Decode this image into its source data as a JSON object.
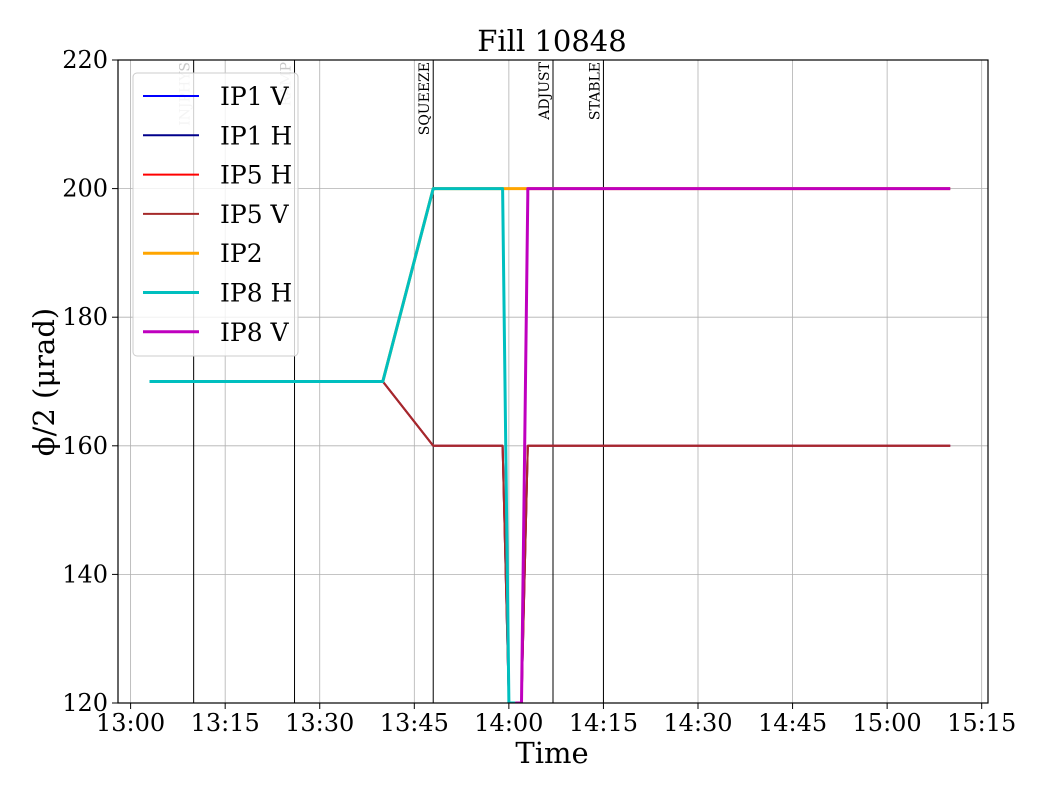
{
  "chart_data": {
    "type": "line",
    "title": "Fill 10848",
    "xlabel": "Time",
    "ylabel": "ϕ/2 (μrad)",
    "ylim": [
      120,
      220
    ],
    "xlim": [
      "13:00",
      "15:16"
    ],
    "grid": true,
    "legend_position": "top-left",
    "x_ticks": [
      "13:00",
      "13:15",
      "13:30",
      "13:45",
      "14:00",
      "14:15",
      "14:30",
      "14:45",
      "15:00",
      "15:15"
    ],
    "y_ticks": [
      "120",
      "140",
      "160",
      "180",
      "200",
      "220"
    ],
    "events": [
      {
        "label": "INJPHYS",
        "time": "13:10",
        "color": "#c8c8c8"
      },
      {
        "label": "RAMP",
        "time": "13:26",
        "color": "#c8c8c8"
      },
      {
        "label": "SQUEEZE",
        "time": "13:48",
        "color": "#000000"
      },
      {
        "label": "ADJUST",
        "time": "14:07",
        "color": "#000000"
      },
      {
        "label": "STABLE",
        "time": "14:15",
        "color": "#000000"
      }
    ],
    "series": [
      {
        "name": "IP1 V",
        "color": "#0000ff",
        "width": 2,
        "points": [
          [
            "13:03",
            170
          ],
          [
            "13:40",
            170
          ],
          [
            "13:48",
            160
          ],
          [
            "13:59",
            160
          ],
          [
            "14:00",
            120
          ],
          [
            "14:02",
            120
          ],
          [
            "14:03",
            160
          ],
          [
            "15:10",
            160
          ]
        ]
      },
      {
        "name": "IP1 H",
        "color": "#00008b",
        "width": 2,
        "points": [
          [
            "13:03",
            170
          ],
          [
            "13:40",
            170
          ],
          [
            "13:48",
            200
          ],
          [
            "13:59",
            200
          ],
          [
            "14:00",
            120
          ],
          [
            "14:02",
            120
          ],
          [
            "14:03",
            200
          ],
          [
            "15:10",
            200
          ]
        ]
      },
      {
        "name": "IP5 H",
        "color": "#ff0000",
        "width": 2,
        "points": [
          [
            "13:03",
            170
          ],
          [
            "13:40",
            170
          ],
          [
            "13:48",
            160
          ],
          [
            "13:59",
            160
          ],
          [
            "14:00",
            120
          ],
          [
            "14:02",
            120
          ],
          [
            "14:03",
            160
          ],
          [
            "15:10",
            160
          ]
        ]
      },
      {
        "name": "IP5 V",
        "color": "#a52a2a",
        "width": 2,
        "points": [
          [
            "13:03",
            170
          ],
          [
            "13:40",
            170
          ],
          [
            "13:48",
            160
          ],
          [
            "13:59",
            160
          ],
          [
            "14:00",
            120
          ],
          [
            "14:02",
            120
          ],
          [
            "14:03",
            160
          ],
          [
            "15:10",
            160
          ]
        ]
      },
      {
        "name": "IP2",
        "color": "#ffa500",
        "width": 3,
        "points": [
          [
            "13:03",
            170
          ],
          [
            "13:40",
            170
          ],
          [
            "13:48",
            200
          ],
          [
            "15:10",
            200
          ]
        ]
      },
      {
        "name": "IP8 H",
        "color": "#00bfbf",
        "width": 3,
        "points": [
          [
            "13:03",
            170
          ],
          [
            "13:40",
            170
          ],
          [
            "13:48",
            200
          ],
          [
            "13:59",
            200
          ],
          [
            "14:00",
            120
          ],
          [
            "14:01",
            120
          ]
        ]
      },
      {
        "name": "IP8 V",
        "color": "#bf00bf",
        "width": 3,
        "points": [
          [
            "14:01",
            120
          ],
          [
            "14:02",
            120
          ],
          [
            "14:03",
            199
          ],
          [
            "14:03",
            200
          ],
          [
            "15:10",
            200
          ]
        ]
      }
    ]
  }
}
